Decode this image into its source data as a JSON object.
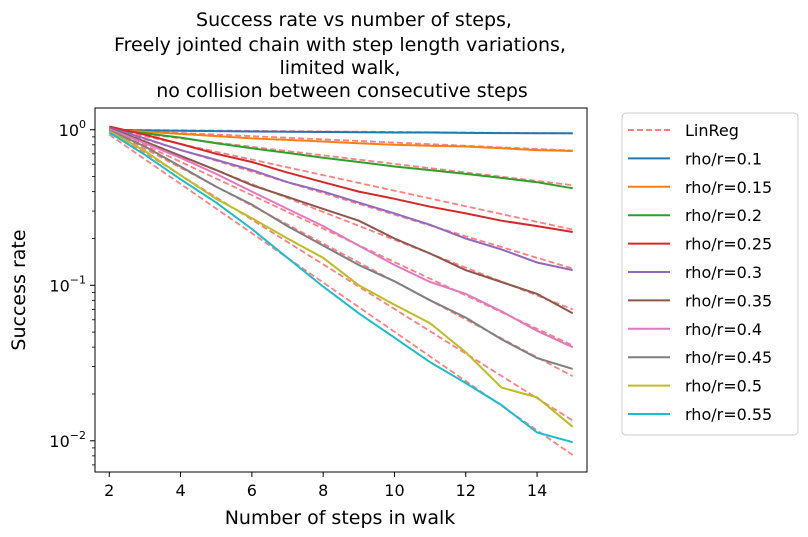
{
  "chart_data": {
    "type": "line",
    "title_lines": [
      "Success rate vs number of steps,",
      "Freely jointed chain with step length variations,",
      "limited walk,",
      "no collision between consecutive steps"
    ],
    "xlabel": "Number of steps in walk",
    "ylabel": "Success rate",
    "xlim": [
      1.6,
      15.4
    ],
    "ylim": [
      0.0063,
      1.38
    ],
    "yscale": "log",
    "xticks": [
      2,
      4,
      6,
      8,
      10,
      12,
      14
    ],
    "xtick_labels": [
      "2",
      "4",
      "6",
      "8",
      "10",
      "12",
      "14"
    ],
    "yticks": [
      {
        "value": 1,
        "base": "10",
        "exp": "0"
      },
      {
        "value": 0.1,
        "base": "10",
        "exp": "−1"
      },
      {
        "value": 0.01,
        "base": "10",
        "exp": "−2"
      }
    ],
    "x": [
      2,
      3,
      4,
      5,
      6,
      7,
      8,
      9,
      10,
      11,
      12,
      13,
      14,
      15
    ],
    "series": [
      {
        "name": "rho/r=0.1",
        "color": "#1f77b4",
        "values": [
          1.0,
          0.99,
          0.985,
          0.98,
          0.975,
          0.97,
          0.967,
          0.963,
          0.96,
          0.96,
          0.955,
          0.952,
          0.95,
          0.95
        ]
      },
      {
        "name": "rho/r=0.15",
        "color": "#ff7f0e",
        "values": [
          1.0,
          0.97,
          0.94,
          0.91,
          0.88,
          0.86,
          0.84,
          0.82,
          0.8,
          0.79,
          0.78,
          0.76,
          0.74,
          0.73
        ]
      },
      {
        "name": "rho/r=0.2",
        "color": "#2ca02c",
        "values": [
          1.0,
          0.95,
          0.89,
          0.82,
          0.76,
          0.71,
          0.66,
          0.62,
          0.58,
          0.55,
          0.52,
          0.49,
          0.46,
          0.42
        ]
      },
      {
        "name": "rho/r=0.25",
        "color": "#d62728",
        "values": [
          1.05,
          0.93,
          0.81,
          0.7,
          0.62,
          0.53,
          0.46,
          0.4,
          0.36,
          0.32,
          0.29,
          0.26,
          0.24,
          0.22
        ]
      },
      {
        "name": "rho/r=0.3",
        "color": "#9467bd",
        "values": [
          1.03,
          0.88,
          0.74,
          0.64,
          0.55,
          0.46,
          0.4,
          0.34,
          0.29,
          0.245,
          0.2,
          0.17,
          0.14,
          0.125
        ]
      },
      {
        "name": "rho/r=0.35",
        "color": "#8c564b",
        "values": [
          1.02,
          0.84,
          0.68,
          0.55,
          0.44,
          0.37,
          0.31,
          0.26,
          0.2,
          0.16,
          0.125,
          0.105,
          0.088,
          0.066
        ]
      },
      {
        "name": "rho/r=0.4",
        "color": "#e377c2",
        "values": [
          1.01,
          0.82,
          0.66,
          0.52,
          0.4,
          0.31,
          0.24,
          0.18,
          0.135,
          0.105,
          0.088,
          0.068,
          0.051,
          0.04
        ]
      },
      {
        "name": "rho/r=0.45",
        "color": "#7f7f7f",
        "values": [
          0.99,
          0.78,
          0.58,
          0.43,
          0.33,
          0.24,
          0.18,
          0.135,
          0.106,
          0.08,
          0.062,
          0.045,
          0.034,
          0.029
        ]
      },
      {
        "name": "rho/r=0.5",
        "color": "#bcbd22",
        "values": [
          0.98,
          0.73,
          0.51,
          0.36,
          0.27,
          0.2,
          0.15,
          0.1,
          0.075,
          0.057,
          0.037,
          0.022,
          0.019,
          0.0123
        ]
      },
      {
        "name": "rho/r=0.55",
        "color": "#17becf",
        "values": [
          0.96,
          0.69,
          0.48,
          0.34,
          0.23,
          0.15,
          0.098,
          0.066,
          0.046,
          0.032,
          0.0235,
          0.017,
          0.0113,
          0.0098
        ]
      }
    ],
    "linreg": {
      "name": "LinReg",
      "color": "#ff7f7f",
      "style": "dashed",
      "lines": [
        {
          "x": [
            2,
            15
          ],
          "y": [
            1.0,
            0.948
          ]
        },
        {
          "x": [
            2,
            15
          ],
          "y": [
            1.0,
            0.735
          ]
        },
        {
          "x": [
            2,
            15
          ],
          "y": [
            1.0,
            0.44
          ]
        },
        {
          "x": [
            2,
            15
          ],
          "y": [
            1.02,
            0.228
          ]
        },
        {
          "x": [
            2,
            15
          ],
          "y": [
            1.02,
            0.128
          ]
        },
        {
          "x": [
            2,
            15
          ],
          "y": [
            1.02,
            0.07
          ]
        },
        {
          "x": [
            2,
            15
          ],
          "y": [
            1.02,
            0.041
          ]
        },
        {
          "x": [
            2,
            15
          ],
          "y": [
            1.0,
            0.026
          ]
        },
        {
          "x": [
            2,
            15
          ],
          "y": [
            0.99,
            0.0135
          ]
        },
        {
          "x": [
            2,
            15
          ],
          "y": [
            0.93,
            0.0081
          ]
        }
      ]
    },
    "legend": {
      "position": "outside-right",
      "entries": [
        "LinReg",
        "rho/r=0.1",
        "rho/r=0.15",
        "rho/r=0.2",
        "rho/r=0.25",
        "rho/r=0.3",
        "rho/r=0.35",
        "rho/r=0.4",
        "rho/r=0.45",
        "rho/r=0.5",
        "rho/r=0.55"
      ]
    },
    "grid": false
  }
}
